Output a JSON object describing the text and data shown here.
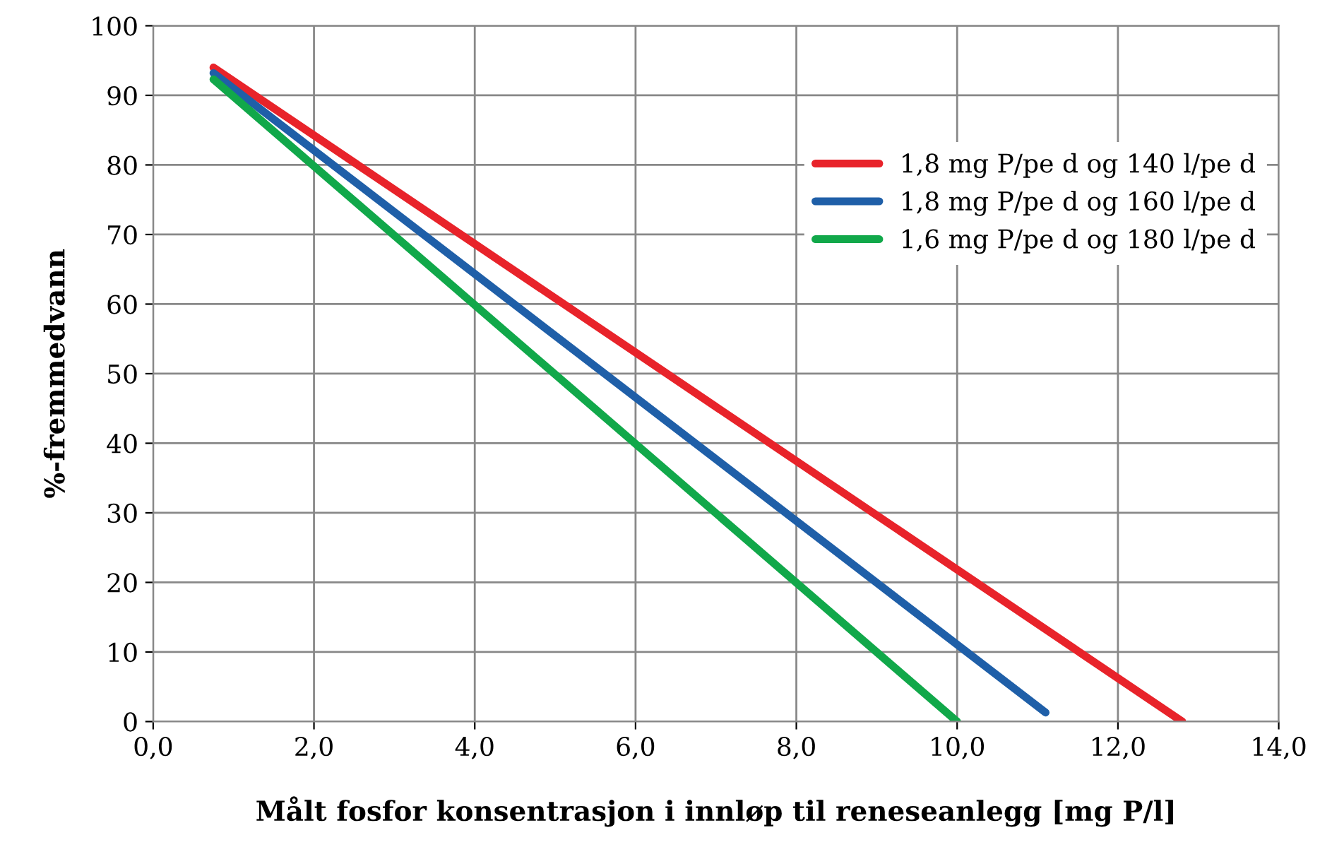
{
  "chart_data": {
    "type": "line",
    "xlabel": "Målt fosfor konsentrasjon i innløp til reneseanlegg [mg P/l]",
    "ylabel": "%-fremmedvann",
    "series": [
      {
        "name": "1,8 mg P/pe d og 140 l/pe d",
        "color": "#e8232a",
        "x": [
          0.75,
          12.8
        ],
        "values": [
          94,
          0
        ]
      },
      {
        "name": "1,8 mg P/pe d og 160 l/pe d",
        "color": "#1f5fa8",
        "x": [
          0.75,
          11.1
        ],
        "values": [
          93.2,
          1.3
        ]
      },
      {
        "name": "1,6 mg P/pe d og 180 l/pe d",
        "color": "#11a84a",
        "x": [
          0.75,
          10.0
        ],
        "values": [
          92.3,
          0
        ]
      }
    ],
    "xlim": [
      0,
      14
    ],
    "ylim": [
      0,
      100
    ],
    "xticks": [
      {
        "value": 0,
        "label": "0,0"
      },
      {
        "value": 2,
        "label": "2,0"
      },
      {
        "value": 4,
        "label": "4,0"
      },
      {
        "value": 6,
        "label": "6,0"
      },
      {
        "value": 8,
        "label": "8,0"
      },
      {
        "value": 10,
        "label": "10,0"
      },
      {
        "value": 12,
        "label": "12,0"
      },
      {
        "value": 14,
        "label": "14,0"
      }
    ],
    "yticks": [
      0,
      10,
      20,
      30,
      40,
      50,
      60,
      70,
      80,
      90,
      100
    ],
    "grid": true,
    "legend": "top right",
    "marker": "none",
    "line_style": "solid"
  }
}
